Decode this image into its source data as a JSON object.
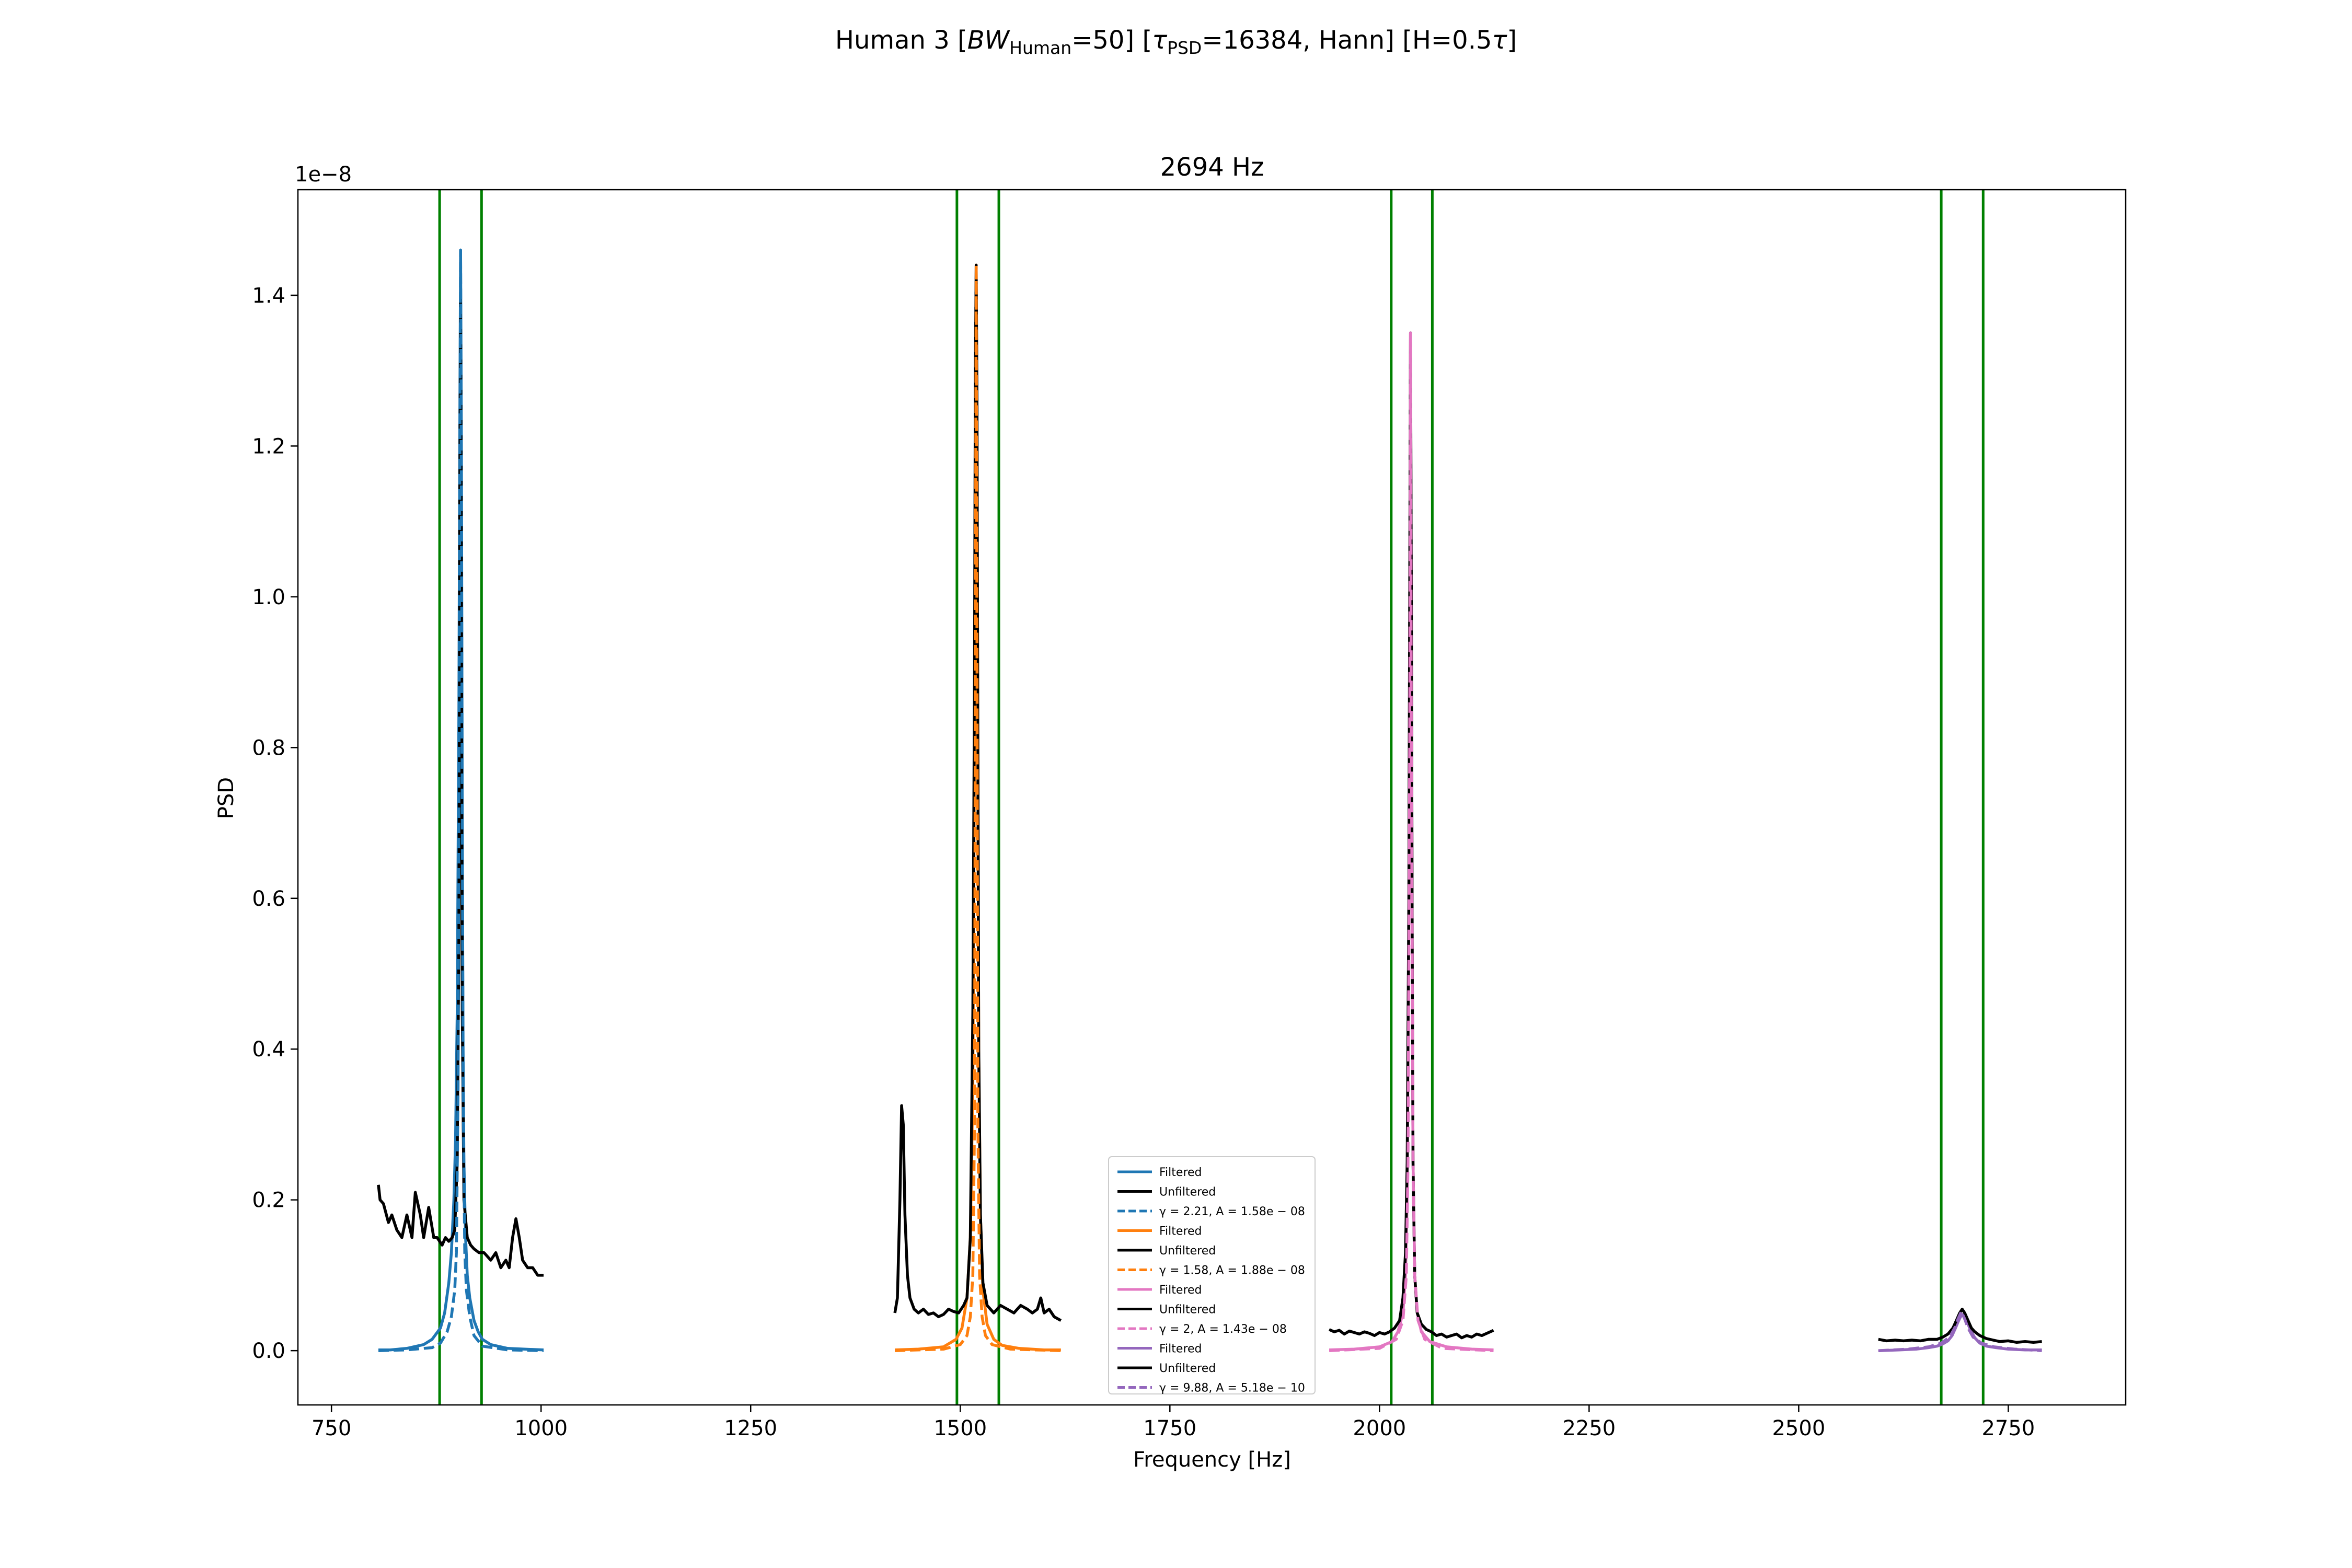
{
  "figure": {
    "suptitle": {
      "part1": "Human 3    [",
      "bw_sym": "BW",
      "bw_sub": "Human",
      "part2": "=50]   [",
      "tau_sym": "τ",
      "tau_sub": "PSD",
      "part3": "=16384, Hann]   [H=0.5",
      "tau2_sym": "τ",
      "part4": "]"
    }
  },
  "chart_data": {
    "type": "line",
    "title": "2694 Hz",
    "xlabel": "Frequency [Hz]",
    "ylabel": "PSD",
    "y_scale_label": "1e−8",
    "xlim": [
      710,
      2890
    ],
    "ylim": [
      -0.072,
      1.54
    ],
    "xticks": [
      {
        "value": 750,
        "label": "750"
      },
      {
        "value": 1000,
        "label": "1000"
      },
      {
        "value": 1250,
        "label": "1250"
      },
      {
        "value": 1500,
        "label": "1500"
      },
      {
        "value": 1750,
        "label": "1750"
      },
      {
        "value": 2000,
        "label": "2000"
      },
      {
        "value": 2250,
        "label": "2250"
      },
      {
        "value": 2500,
        "label": "2500"
      },
      {
        "value": 2750,
        "label": "2750"
      }
    ],
    "yticks": [
      {
        "value": 0.0,
        "label": "0.0"
      },
      {
        "value": 0.2,
        "label": "0.2"
      },
      {
        "value": 0.4,
        "label": "0.4"
      },
      {
        "value": 0.6,
        "label": "0.6"
      },
      {
        "value": 0.8,
        "label": "0.8"
      },
      {
        "value": 1.0,
        "label": "1.0"
      },
      {
        "value": 1.2,
        "label": "1.2"
      },
      {
        "value": 1.4,
        "label": "1.4"
      }
    ],
    "grid": false,
    "legend_position": "lower-center",
    "vlines": {
      "color": "#008000",
      "x": [
        879,
        929,
        1496,
        1546,
        2014,
        2063,
        2670,
        2720
      ]
    },
    "peaks": [
      {
        "color": "#1f77b4",
        "fit_label": "γ = 2.21, A = 1.58e − 08",
        "filtered": {
          "x": [
            806,
            820,
            840,
            860,
            870,
            880,
            885,
            890,
            893,
            896,
            898,
            900,
            902,
            903,
            904,
            905,
            906,
            907,
            908,
            910,
            912,
            915,
            920,
            925,
            930,
            940,
            960,
            980,
            1003
          ],
          "y": [
            0.001,
            0.001,
            0.003,
            0.008,
            0.015,
            0.03,
            0.05,
            0.09,
            0.13,
            0.2,
            0.28,
            0.45,
            0.85,
            1.2,
            1.46,
            1.2,
            0.7,
            0.4,
            0.25,
            0.15,
            0.1,
            0.07,
            0.04,
            0.025,
            0.015,
            0.008,
            0.003,
            0.002,
            0.001
          ]
        },
        "unfiltered": {
          "x": [
            806,
            808,
            812,
            818,
            822,
            828,
            834,
            840,
            846,
            850,
            856,
            860,
            866,
            872,
            876,
            882,
            886,
            890,
            894,
            897,
            900,
            902,
            903,
            904,
            905,
            906,
            908,
            912,
            916,
            920,
            926,
            932,
            940,
            946,
            952,
            958,
            962,
            966,
            970,
            974,
            978,
            984,
            990,
            996,
            1003
          ],
          "y": [
            0.22,
            0.2,
            0.195,
            0.17,
            0.18,
            0.16,
            0.15,
            0.18,
            0.15,
            0.21,
            0.18,
            0.15,
            0.19,
            0.15,
            0.15,
            0.14,
            0.15,
            0.145,
            0.15,
            0.16,
            0.25,
            0.55,
            1.1,
            1.4,
            1.0,
            0.45,
            0.2,
            0.15,
            0.14,
            0.135,
            0.13,
            0.13,
            0.12,
            0.13,
            0.11,
            0.12,
            0.11,
            0.15,
            0.175,
            0.15,
            0.12,
            0.11,
            0.11,
            0.1,
            0.1
          ]
        },
        "fit": {
          "x": [
            806,
            840,
            870,
            880,
            888,
            893,
            897,
            899,
            901,
            903,
            904,
            905,
            907,
            909,
            911,
            915,
            920,
            930,
            960,
            1003
          ],
          "y": [
            0.0,
            0.001,
            0.004,
            0.01,
            0.025,
            0.045,
            0.08,
            0.13,
            0.35,
            1.1,
            1.46,
            1.1,
            0.35,
            0.13,
            0.08,
            0.045,
            0.02,
            0.006,
            0.001,
            0.0
          ]
        }
      },
      {
        "color": "#ff7f0e",
        "fit_label": "γ = 1.58, A = 1.88e − 08",
        "filtered": {
          "x": [
            1422,
            1450,
            1480,
            1495,
            1502,
            1508,
            1512,
            1515,
            1517,
            1518,
            1519,
            1520,
            1521,
            1522,
            1524,
            1527,
            1532,
            1540,
            1550,
            1570,
            1600,
            1620
          ],
          "y": [
            0.001,
            0.002,
            0.005,
            0.015,
            0.03,
            0.07,
            0.15,
            0.35,
            0.8,
            1.2,
            1.44,
            1.2,
            0.8,
            0.4,
            0.18,
            0.08,
            0.035,
            0.015,
            0.007,
            0.003,
            0.001,
            0.001
          ]
        },
        "unfiltered": {
          "x": [
            1422,
            1425,
            1428,
            1430,
            1432,
            1434,
            1437,
            1440,
            1445,
            1450,
            1456,
            1462,
            1468,
            1474,
            1480,
            1486,
            1492,
            1498,
            1504,
            1508,
            1512,
            1515,
            1517,
            1518,
            1519,
            1520,
            1521,
            1522,
            1524,
            1527,
            1532,
            1540,
            1548,
            1556,
            1564,
            1572,
            1580,
            1586,
            1592,
            1596,
            1600,
            1606,
            1612,
            1620
          ],
          "y": [
            0.05,
            0.07,
            0.2,
            0.325,
            0.3,
            0.18,
            0.1,
            0.07,
            0.055,
            0.05,
            0.055,
            0.048,
            0.05,
            0.045,
            0.048,
            0.055,
            0.052,
            0.05,
            0.06,
            0.07,
            0.15,
            0.45,
            0.9,
            1.3,
            1.44,
            1.25,
            0.8,
            0.4,
            0.18,
            0.09,
            0.06,
            0.05,
            0.06,
            0.055,
            0.05,
            0.06,
            0.055,
            0.05,
            0.055,
            0.07,
            0.05,
            0.055,
            0.045,
            0.04
          ]
        },
        "fit": {
          "x": [
            1422,
            1480,
            1500,
            1508,
            1512,
            1515,
            1517,
            1518,
            1519,
            1520,
            1521,
            1523,
            1526,
            1530,
            1538,
            1560,
            1620
          ],
          "y": [
            0.0,
            0.002,
            0.008,
            0.02,
            0.045,
            0.1,
            0.3,
            0.9,
            1.44,
            0.9,
            0.3,
            0.1,
            0.045,
            0.02,
            0.008,
            0.002,
            0.0
          ]
        }
      },
      {
        "color": "#e377c2",
        "fit_label": "γ = 2, A = 1.43e − 08",
        "filtered": {
          "x": [
            1940,
            1970,
            2000,
            2015,
            2022,
            2028,
            2031,
            2033,
            2035,
            2036,
            2037,
            2038,
            2039,
            2040,
            2042,
            2045,
            2050,
            2060,
            2080,
            2110,
            2136
          ],
          "y": [
            0.001,
            0.002,
            0.005,
            0.012,
            0.025,
            0.05,
            0.1,
            0.2,
            0.55,
            0.95,
            1.35,
            0.95,
            0.55,
            0.25,
            0.1,
            0.05,
            0.025,
            0.012,
            0.005,
            0.002,
            0.001
          ]
        },
        "unfiltered": {
          "x": [
            1940,
            1946,
            1952,
            1958,
            1964,
            1970,
            1976,
            1982,
            1988,
            1994,
            2000,
            2006,
            2012,
            2018,
            2024,
            2028,
            2031,
            2033,
            2035,
            2036,
            2037,
            2038,
            2039,
            2040,
            2042,
            2045,
            2050,
            2056,
            2062,
            2068,
            2074,
            2080,
            2086,
            2092,
            2098,
            2104,
            2110,
            2116,
            2122,
            2128,
            2136
          ],
          "y": [
            0.028,
            0.025,
            0.027,
            0.022,
            0.026,
            0.024,
            0.022,
            0.025,
            0.023,
            0.02,
            0.024,
            0.022,
            0.025,
            0.03,
            0.04,
            0.07,
            0.13,
            0.25,
            0.6,
            1.0,
            1.35,
            1.0,
            0.55,
            0.25,
            0.1,
            0.05,
            0.035,
            0.028,
            0.025,
            0.02,
            0.022,
            0.018,
            0.02,
            0.022,
            0.017,
            0.02,
            0.018,
            0.022,
            0.02,
            0.023,
            0.027
          ]
        },
        "fit": {
          "x": [
            1940,
            2000,
            2020,
            2028,
            2032,
            2034,
            2036,
            2037,
            2038,
            2040,
            2042,
            2046,
            2054,
            2075,
            2136
          ],
          "y": [
            0.0,
            0.003,
            0.015,
            0.04,
            0.1,
            0.25,
            0.8,
            1.35,
            0.8,
            0.25,
            0.1,
            0.04,
            0.015,
            0.003,
            0.0
          ]
        }
      },
      {
        "color": "#9467bd",
        "fit_label": "γ = 9.88, A = 5.18e − 10",
        "filtered": {
          "x": [
            2595,
            2620,
            2640,
            2655,
            2665,
            2672,
            2678,
            2683,
            2687,
            2690,
            2693,
            2696,
            2699,
            2702,
            2706,
            2710,
            2716,
            2724,
            2735,
            2750,
            2770,
            2790
          ],
          "y": [
            0.0,
            0.001,
            0.002,
            0.004,
            0.006,
            0.009,
            0.013,
            0.02,
            0.03,
            0.038,
            0.045,
            0.048,
            0.045,
            0.035,
            0.025,
            0.017,
            0.01,
            0.006,
            0.004,
            0.002,
            0.001,
            0.001
          ]
        },
        "unfiltered": {
          "x": [
            2595,
            2605,
            2615,
            2625,
            2635,
            2645,
            2655,
            2665,
            2672,
            2678,
            2684,
            2688,
            2692,
            2695,
            2698,
            2702,
            2706,
            2710,
            2716,
            2724,
            2732,
            2740,
            2750,
            2760,
            2770,
            2780,
            2790
          ],
          "y": [
            0.015,
            0.013,
            0.014,
            0.013,
            0.014,
            0.013,
            0.015,
            0.015,
            0.018,
            0.022,
            0.03,
            0.04,
            0.05,
            0.055,
            0.05,
            0.04,
            0.03,
            0.025,
            0.02,
            0.016,
            0.014,
            0.012,
            0.013,
            0.011,
            0.012,
            0.011,
            0.012
          ]
        },
        "fit": {
          "x": [
            2595,
            2630,
            2655,
            2670,
            2680,
            2686,
            2690,
            2694,
            2698,
            2702,
            2708,
            2718,
            2733,
            2758,
            2790
          ],
          "y": [
            0.0,
            0.002,
            0.005,
            0.01,
            0.018,
            0.03,
            0.042,
            0.052,
            0.042,
            0.03,
            0.018,
            0.01,
            0.005,
            0.002,
            0.0
          ]
        }
      }
    ],
    "legend": [
      {
        "label": "Filtered",
        "color": "#1f77b4",
        "dash": false
      },
      {
        "label": "Unfiltered",
        "color": "#000000",
        "dash": false
      },
      {
        "label": "γ = 2.21, A = 1.58e − 08",
        "color": "#1f77b4",
        "dash": true
      },
      {
        "label": "Filtered",
        "color": "#ff7f0e",
        "dash": false
      },
      {
        "label": "Unfiltered",
        "color": "#000000",
        "dash": false
      },
      {
        "label": "γ = 1.58, A = 1.88e − 08",
        "color": "#ff7f0e",
        "dash": true
      },
      {
        "label": "Filtered",
        "color": "#e377c2",
        "dash": false
      },
      {
        "label": "Unfiltered",
        "color": "#000000",
        "dash": false
      },
      {
        "label": "γ = 2, A = 1.43e − 08",
        "color": "#e377c2",
        "dash": true
      },
      {
        "label": "Filtered",
        "color": "#9467bd",
        "dash": false
      },
      {
        "label": "Unfiltered",
        "color": "#000000",
        "dash": false
      },
      {
        "label": "γ = 9.88, A = 5.18e − 10",
        "color": "#9467bd",
        "dash": true
      }
    ]
  }
}
